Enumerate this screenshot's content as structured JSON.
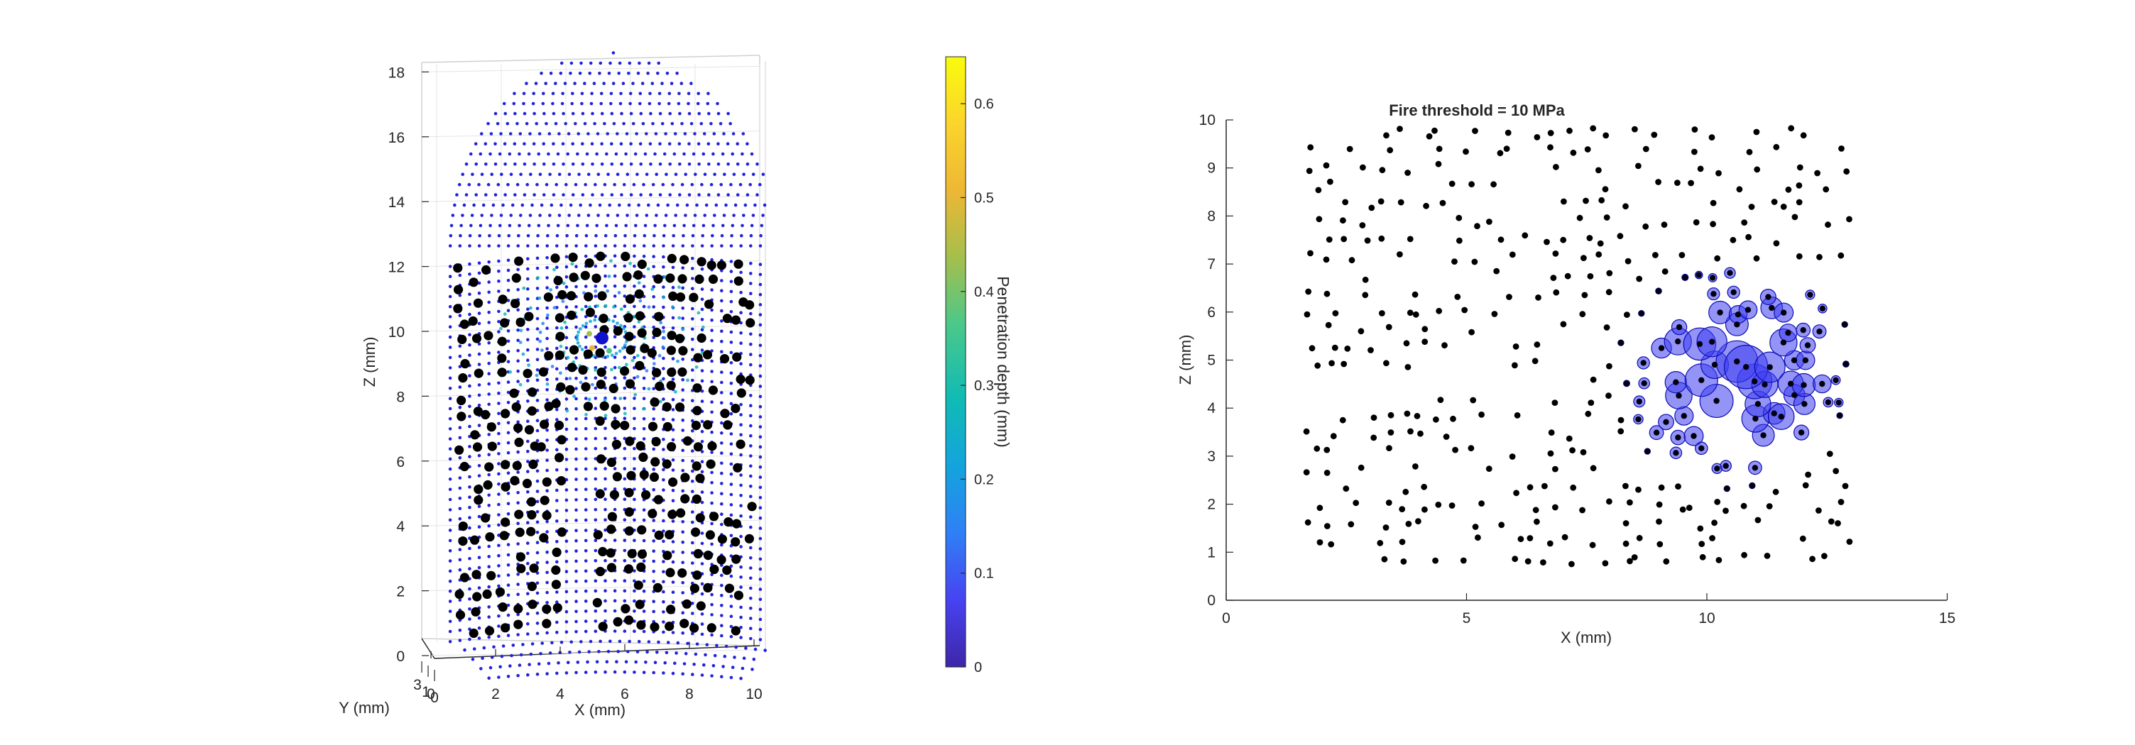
{
  "colors": {
    "axis": "#262626",
    "box": "#d0d0d0",
    "grid3d": "#e4e4e4",
    "lattice": "#2222dd",
    "sensor": "#000000",
    "bubble_fill": "#3d3df0",
    "bubble_edge": "#0c0cb4",
    "colormap": [
      "#3e26a8",
      "#4743f2",
      "#2f80f6",
      "#14a4dc",
      "#10bbb5",
      "#4ac88a",
      "#a4bf4c",
      "#edb735",
      "#fbd42c",
      "#f9fb0e"
    ]
  },
  "chart_data": [
    {
      "type": "scatter",
      "xlabel": "X (mm)",
      "ylabel": "Y (mm)",
      "zlabel": "Z (mm)",
      "x_ticks": [
        "0",
        "2",
        "4",
        "6",
        "8",
        "10"
      ],
      "y_ticks": [
        "0",
        "1",
        "3"
      ],
      "z_ticks": [
        "0",
        "2",
        "4",
        "6",
        "8",
        "10",
        "12",
        "14",
        "16",
        "18"
      ],
      "xlim": [
        0,
        10.5
      ],
      "zlim": [
        -0.5,
        19
      ],
      "lattice_z_range": [
        -0.2,
        18.9
      ],
      "sensor_region": {
        "x": [
          0.2,
          10.3
        ],
        "z": [
          1.3,
          12.7
        ]
      },
      "contact_point": {
        "x": 4.9,
        "z": 10.1
      },
      "colorbar": {
        "label": "Penetration depth (mm)",
        "range": [
          0,
          0.65
        ],
        "ticks": [
          "0",
          "0.1",
          "0.2",
          "0.3",
          "0.4",
          "0.5",
          "0.6"
        ]
      }
    },
    {
      "type": "scatter",
      "title": "Fire threshold = 10 MPa",
      "xlabel": "X (mm)",
      "ylabel": "Z (mm)",
      "xlim": [
        0,
        15
      ],
      "ylim": [
        0,
        10
      ],
      "x_ticks": [
        "0",
        "5",
        "10",
        "15"
      ],
      "y_ticks": [
        "0",
        "1",
        "2",
        "3",
        "4",
        "5",
        "6",
        "7",
        "8",
        "9",
        "10"
      ],
      "points_region": {
        "x": [
          1.8,
          13.1
        ],
        "z": [
          0.85,
          10
        ]
      },
      "gap_band_z": [
        4.2,
        4.8
      ],
      "firing_region": {
        "x": [
          7.8,
          13.0
        ],
        "z": [
          1.9,
          7.0
        ]
      },
      "firing_center": {
        "x": 10.6,
        "z": 4.7
      },
      "bubble_max_radius_mm": 0.45
    }
  ]
}
